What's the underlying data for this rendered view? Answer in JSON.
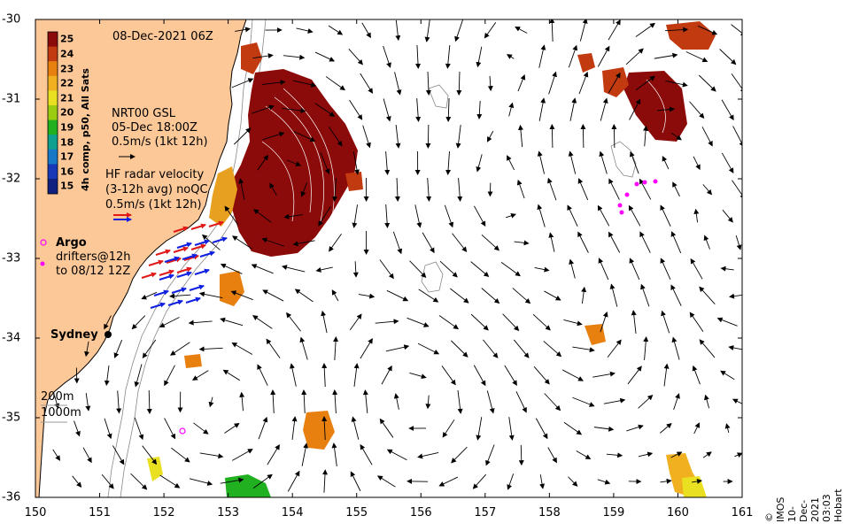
{
  "map": {
    "timestamp": "08-Dec-2021 06Z",
    "credit": "© IMOS 10-Dec-2021 03:03 Hobart",
    "x_ticks": [
      "150",
      "151",
      "152",
      "153",
      "154",
      "155",
      "156",
      "157",
      "158",
      "159",
      "160",
      "161"
    ],
    "y_ticks": [
      "-30",
      "-31",
      "-32",
      "-33",
      "-34",
      "-35",
      "-36"
    ],
    "lon_range": [
      150,
      161
    ],
    "lat_range": [
      -36,
      -30
    ]
  },
  "colorbar": {
    "label": "4h comp, p50, All Sats",
    "ticks": [
      "25",
      "24",
      "23",
      "22",
      "21",
      "20",
      "19",
      "18",
      "17",
      "16",
      "15"
    ],
    "colors": [
      "#8b0a0a",
      "#c23a10",
      "#e88010",
      "#f0b020",
      "#e8e020",
      "#9ccc10",
      "#20b020",
      "#10a090",
      "#1878c8",
      "#1838b8",
      "#102080"
    ]
  },
  "legend": {
    "gsl_title": "NRT00 GSL",
    "gsl_date": "05-Dec 18:00Z",
    "gsl_scale": "0.5m/s (1kt 12h)",
    "hf_title": "HF radar velocity",
    "hf_detail": "(3-12h avg) noQC",
    "hf_scale": "0.5m/s (1kt 12h)",
    "argo_label": "Argo",
    "drifter_label_1": "drifters@12h",
    "drifter_label_2": "to 08/12 12Z",
    "city_label": "Sydney",
    "contour_200": "200m",
    "contour_1000": "1000m"
  },
  "colors": {
    "land": "#fcc898",
    "radar_red": "#e01818",
    "radar_blue": "#1020e0",
    "argo": "#ff00ff"
  }
}
